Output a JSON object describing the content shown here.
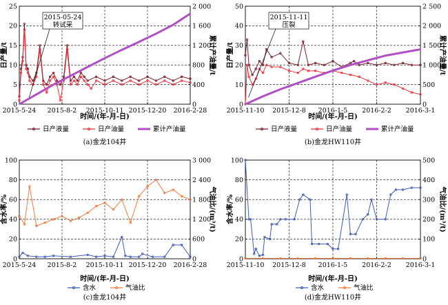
{
  "colors": {
    "liquid": "#7a1e2c",
    "oil": "#e8323c",
    "cum": "#b04fc4",
    "water": "#3c5bb4",
    "gas": "#ee7b3a",
    "grid": "#000000"
  },
  "chart_data": [
    {
      "id": "a",
      "type": "line",
      "caption": "(a)金龙104井",
      "xlabel": "时间/(年-月-日)",
      "ylabel": "日产量/t",
      "y2label": "累计产油量/t",
      "x_ticks": [
        "2015-5-24",
        "2015-8-2",
        "2015-10-11",
        "2015-12-20",
        "2016-2-28"
      ],
      "ylim": [
        0,
        25
      ],
      "y_ticks": [
        "0",
        "5",
        "10",
        "15",
        "20",
        "25"
      ],
      "y2lim": [
        0,
        2000
      ],
      "y2_ticks": [
        "0",
        "400",
        "800",
        "1 200",
        "1 600",
        "2 000"
      ],
      "annotation": {
        "line1": "2015-05-24",
        "line2": "转试采",
        "x": 0.05
      },
      "legend": [
        "日产液量",
        "日产油量",
        "累计产油量"
      ],
      "series": [
        {
          "name": "日产液量",
          "axis": "left",
          "x": [
            0.0,
            0.01,
            0.02,
            0.03,
            0.04,
            0.05,
            0.06,
            0.08,
            0.1,
            0.12,
            0.14,
            0.16,
            0.18,
            0.2,
            0.22,
            0.24,
            0.26,
            0.28,
            0.3,
            0.32,
            0.34,
            0.36,
            0.38,
            0.4,
            0.45,
            0.5,
            0.55,
            0.6,
            0.65,
            0.7,
            0.75,
            0.8,
            0.85,
            0.9,
            0.95,
            1.0
          ],
          "values": [
            2,
            9,
            12,
            20.5,
            10,
            9,
            7,
            6,
            8,
            15,
            6,
            5,
            7,
            8,
            6,
            5,
            7,
            15,
            6,
            7,
            6,
            8,
            7,
            6,
            7,
            6,
            7,
            6,
            7,
            6,
            7,
            6,
            7,
            6,
            7,
            6.5
          ]
        },
        {
          "name": "日产油量",
          "axis": "left",
          "x": [
            0.0,
            0.01,
            0.02,
            0.03,
            0.04,
            0.05,
            0.06,
            0.08,
            0.1,
            0.12,
            0.14,
            0.16,
            0.18,
            0.2,
            0.22,
            0.24,
            0.26,
            0.28,
            0.3,
            0.32,
            0.34,
            0.36,
            0.38,
            0.4,
            0.42,
            0.45,
            0.5,
            0.55,
            0.6,
            0.65,
            0.7,
            0.75,
            0.8,
            0.85,
            0.9,
            0.95,
            1.0
          ],
          "values": [
            1,
            8,
            11,
            19,
            9,
            8,
            6,
            5,
            7,
            14,
            5,
            3,
            6,
            7,
            5,
            1,
            6,
            14,
            5,
            6,
            5,
            7,
            6,
            5,
            4,
            6,
            5,
            6,
            5,
            6,
            5,
            6,
            5,
            6,
            5,
            6,
            5.5
          ]
        },
        {
          "name": "累计产油量",
          "axis": "right",
          "x": [
            0.0,
            0.1,
            0.2,
            0.3,
            0.4,
            0.5,
            0.6,
            0.7,
            0.8,
            0.9,
            1.0
          ],
          "values": [
            0,
            200,
            400,
            580,
            760,
            940,
            1110,
            1270,
            1440,
            1620,
            1850
          ]
        }
      ]
    },
    {
      "id": "b",
      "type": "line",
      "caption": "(b)金龙HW110井",
      "xlabel": "时间/(年-月-日)",
      "ylabel": "日产量/t",
      "y2label": "累计产油量/t",
      "x_ticks": [
        "2015-11-10",
        "2015-12-8",
        "2016-1-5",
        "2016-2-2",
        "2016-3-1"
      ],
      "ylim": [
        0,
        50
      ],
      "y_ticks": [
        "0",
        "10",
        "20",
        "30",
        "40",
        "50"
      ],
      "y2lim": [
        0,
        2500
      ],
      "y2_ticks": [
        "0",
        "500",
        "1 000",
        "1 500",
        "2 000",
        "2 500"
      ],
      "annotation": {
        "line1": "2015-11-11",
        "line2": "压裂",
        "x": 0.01
      },
      "legend": [
        "日产液量",
        "日产油量",
        "累计产油量"
      ],
      "series": [
        {
          "name": "日产液量",
          "axis": "left",
          "x": [
            0.0,
            0.01,
            0.02,
            0.04,
            0.06,
            0.08,
            0.1,
            0.12,
            0.15,
            0.2,
            0.25,
            0.3,
            0.33,
            0.36,
            0.4,
            0.45,
            0.5,
            0.55,
            0.6,
            0.62,
            0.65,
            0.7,
            0.75,
            0.8,
            0.85,
            0.9,
            0.95,
            1.0
          ],
          "values": [
            25,
            33,
            20,
            15,
            18,
            22,
            20,
            28,
            24,
            26,
            21,
            20,
            32,
            20,
            21,
            20,
            22,
            19,
            21,
            22,
            20,
            21,
            20,
            21,
            20,
            21,
            20,
            20
          ]
        },
        {
          "name": "日产油量",
          "axis": "left",
          "x": [
            0.0,
            0.01,
            0.02,
            0.04,
            0.06,
            0.08,
            0.1,
            0.12,
            0.15,
            0.2,
            0.25,
            0.3,
            0.33,
            0.36,
            0.4,
            0.45,
            0.5,
            0.55,
            0.6,
            0.65,
            0.7,
            0.75,
            0.8,
            0.85,
            0.9,
            0.95,
            1.0
          ],
          "values": [
            0,
            20,
            14,
            10,
            13,
            18,
            16,
            20,
            19,
            19,
            17,
            16,
            18,
            17,
            17,
            16,
            17,
            16,
            15,
            14,
            12,
            10,
            11,
            10,
            8,
            6,
            5
          ]
        },
        {
          "name": "累计产油量",
          "axis": "right",
          "x": [
            0.0,
            0.1,
            0.2,
            0.3,
            0.4,
            0.5,
            0.6,
            0.7,
            0.8,
            0.9,
            1.0
          ],
          "values": [
            0,
            200,
            380,
            540,
            700,
            860,
            1000,
            1120,
            1240,
            1320,
            1400
          ]
        }
      ]
    },
    {
      "id": "c",
      "type": "line",
      "caption": "(c)金龙104井",
      "xlabel": "时间/(年-月-日)",
      "ylabel": "含水率/%",
      "y2label": "气油比/(m³/t)",
      "x_ticks": [
        "2015-5-24",
        "2015-8-2",
        "2015-10-11",
        "2015-12-20",
        "2016-2-28"
      ],
      "ylim": [
        0,
        100
      ],
      "y_ticks": [
        "0",
        "20",
        "40",
        "60",
        "80",
        "100"
      ],
      "y2lim": [
        0,
        3000
      ],
      "y2_ticks": [
        "0",
        "600",
        "1 200",
        "1 800",
        "2 400",
        "3 000"
      ],
      "legend": [
        "含水",
        "气油比"
      ],
      "series": [
        {
          "name": "含水",
          "axis": "left",
          "x": [
            0.0,
            0.02,
            0.05,
            0.1,
            0.15,
            0.2,
            0.3,
            0.4,
            0.45,
            0.5,
            0.55,
            0.6,
            0.62,
            0.65,
            0.7,
            0.72,
            0.78,
            0.85,
            0.9,
            0.95,
            1.0
          ],
          "values": [
            2,
            6,
            3,
            2,
            2,
            3,
            2,
            4,
            2,
            3,
            2,
            22,
            3,
            2,
            2,
            5,
            2,
            2,
            14,
            14,
            2
          ]
        },
        {
          "name": "气油比",
          "axis": "right",
          "x": [
            0.0,
            0.03,
            0.06,
            0.1,
            0.15,
            0.2,
            0.25,
            0.3,
            0.35,
            0.4,
            0.45,
            0.5,
            0.55,
            0.6,
            0.65,
            0.7,
            0.75,
            0.8,
            0.85,
            0.9,
            0.95,
            1.0
          ],
          "values": [
            1300,
            1050,
            2200,
            1000,
            1100,
            1200,
            1300,
            1150,
            1250,
            1400,
            1600,
            1700,
            1500,
            1800,
            1100,
            1900,
            2200,
            2400,
            2000,
            2100,
            1900,
            1800
          ]
        }
      ]
    },
    {
      "id": "d",
      "type": "line",
      "caption": "(d)金龙HW110井",
      "xlabel": "时间/(年-月-日)",
      "ylabel": "含水率/%",
      "y2label": "气油比/(m³/t)",
      "x_ticks": [
        "2015-11-10",
        "2015-12-8",
        "2016-1-5",
        "2016-2-2",
        "2016-3-1"
      ],
      "ylim": [
        0,
        100
      ],
      "y_ticks": [
        "0",
        "20",
        "40",
        "60",
        "80",
        "100"
      ],
      "y2lim": [
        0,
        500
      ],
      "y2_ticks": [
        "0",
        "100",
        "200",
        "300",
        "400",
        "500"
      ],
      "legend": [
        "含水",
        "气油比"
      ],
      "series": [
        {
          "name": "含水",
          "axis": "left",
          "x": [
            0.0,
            0.02,
            0.03,
            0.05,
            0.06,
            0.08,
            0.1,
            0.11,
            0.14,
            0.15,
            0.18,
            0.2,
            0.23,
            0.28,
            0.31,
            0.33,
            0.37,
            0.38,
            0.42,
            0.47,
            0.5,
            0.53,
            0.58,
            0.6,
            0.63,
            0.67,
            0.7,
            0.72,
            0.75,
            0.8,
            0.83,
            0.86,
            0.9,
            0.95,
            1.0
          ],
          "values": [
            100,
            40,
            40,
            5,
            10,
            3,
            4,
            22,
            20,
            35,
            35,
            40,
            40,
            40,
            60,
            65,
            60,
            15,
            15,
            15,
            10,
            10,
            65,
            25,
            25,
            40,
            45,
            60,
            40,
            40,
            65,
            70,
            70,
            72,
            72
          ]
        },
        {
          "name": "气油比",
          "axis": "right",
          "x": [
            0.0,
            0.1,
            0.2,
            0.3,
            0.4,
            0.5,
            0.6,
            0.7,
            0.8,
            0.9,
            1.0
          ],
          "values": [
            2,
            2,
            2,
            2,
            2,
            2,
            2,
            2,
            2,
            2,
            2
          ]
        }
      ]
    }
  ]
}
